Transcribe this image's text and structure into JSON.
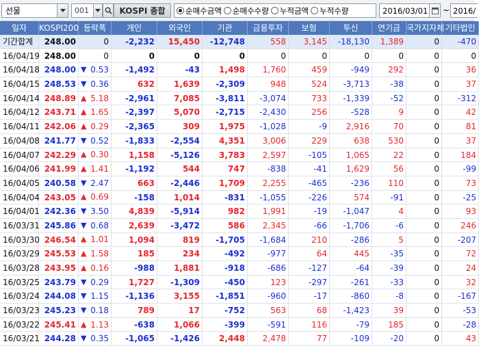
{
  "toolbar": {
    "market": "선물",
    "code": "001",
    "name": "KOSPI 종합",
    "radios": [
      {
        "label": "순매수금액",
        "selected": true
      },
      {
        "label": "순매수수량",
        "selected": false
      },
      {
        "label": "누적금액",
        "selected": false
      },
      {
        "label": "누적수량",
        "selected": false
      }
    ],
    "date_from": "2016/03/01",
    "tilde": "~",
    "date_to": "2016/"
  },
  "columns": [
    "일자",
    "KOSPI200",
    "등락폭",
    "개인",
    "외국인",
    "기관",
    "금융투자",
    "보험",
    "투신",
    "연기금",
    "국가지자체",
    "기타법인"
  ],
  "colors": {
    "header_bg": "#4f78bd",
    "up": "#e4262c",
    "down": "#1a2fd0",
    "total_bg": "#dfe9f7"
  },
  "rows": [
    {
      "date": "기간합계",
      "kospi": "248.00",
      "dir": "",
      "chg": "0",
      "ind": "-2,232",
      "frn": "15,450",
      "inst": "-12,748",
      "fin": "558",
      "ins": "3,145",
      "trust": "-18,130",
      "pens": "1,389",
      "gov": "0",
      "etc": "-470"
    },
    {
      "date": "16/04/19",
      "kospi": "248.00",
      "dir": "",
      "chg": "0",
      "ind": "0",
      "frn": "0",
      "inst": "0",
      "fin": "0",
      "ins": "0",
      "trust": "0",
      "pens": "0",
      "gov": "0",
      "etc": "0"
    },
    {
      "date": "16/04/18",
      "kospi": "248.00",
      "dir": "dn",
      "chg": "0.53",
      "ind": "-1,492",
      "frn": "-43",
      "inst": "1,498",
      "fin": "1,760",
      "ins": "459",
      "trust": "-949",
      "pens": "292",
      "gov": "0",
      "etc": "36"
    },
    {
      "date": "16/04/15",
      "kospi": "248.53",
      "dir": "dn",
      "chg": "0.36",
      "ind": "632",
      "frn": "1,639",
      "inst": "-2,309",
      "fin": "948",
      "ins": "524",
      "trust": "-3,713",
      "pens": "-38",
      "gov": "0",
      "etc": "37"
    },
    {
      "date": "16/04/14",
      "kospi": "248.89",
      "dir": "up",
      "chg": "5.18",
      "ind": "-2,961",
      "frn": "7,085",
      "inst": "-3,811",
      "fin": "-3,074",
      "ins": "733",
      "trust": "-1,339",
      "pens": "-52",
      "gov": "0",
      "etc": "-312"
    },
    {
      "date": "16/04/12",
      "kospi": "243.71",
      "dir": "up",
      "chg": "1.65",
      "ind": "-2,397",
      "frn": "5,070",
      "inst": "-2,715",
      "fin": "-2,430",
      "ins": "256",
      "trust": "-528",
      "pens": "9",
      "gov": "0",
      "etc": "42"
    },
    {
      "date": "16/04/11",
      "kospi": "242.06",
      "dir": "up",
      "chg": "0.29",
      "ind": "-2,365",
      "frn": "309",
      "inst": "1,975",
      "fin": "-1,028",
      "ins": "-9",
      "trust": "2,916",
      "pens": "70",
      "gov": "0",
      "etc": "81"
    },
    {
      "date": "16/04/08",
      "kospi": "241.77",
      "dir": "dn",
      "chg": "0.52",
      "ind": "-1,833",
      "frn": "-2,554",
      "inst": "4,351",
      "fin": "3,006",
      "ins": "229",
      "trust": "638",
      "pens": "530",
      "gov": "0",
      "etc": "37"
    },
    {
      "date": "16/04/07",
      "kospi": "242.29",
      "dir": "up",
      "chg": "0.30",
      "ind": "1,158",
      "frn": "-5,126",
      "inst": "3,783",
      "fin": "2,597",
      "ins": "-105",
      "trust": "1,065",
      "pens": "22",
      "gov": "0",
      "etc": "184"
    },
    {
      "date": "16/04/06",
      "kospi": "241.99",
      "dir": "up",
      "chg": "1.41",
      "ind": "-1,192",
      "frn": "544",
      "inst": "747",
      "fin": "-838",
      "ins": "-41",
      "trust": "1,629",
      "pens": "56",
      "gov": "0",
      "etc": "-99"
    },
    {
      "date": "16/04/05",
      "kospi": "240.58",
      "dir": "dn",
      "chg": "2.47",
      "ind": "663",
      "frn": "-2,446",
      "inst": "1,709",
      "fin": "2,255",
      "ins": "-465",
      "trust": "-236",
      "pens": "110",
      "gov": "0",
      "etc": "73"
    },
    {
      "date": "16/04/04",
      "kospi": "243.05",
      "dir": "up",
      "chg": "0.69",
      "ind": "-158",
      "frn": "1,014",
      "inst": "-831",
      "fin": "-1,055",
      "ins": "-226",
      "trust": "574",
      "pens": "-91",
      "gov": "0",
      "etc": "-25"
    },
    {
      "date": "16/04/01",
      "kospi": "242.36",
      "dir": "dn",
      "chg": "3.50",
      "ind": "4,839",
      "frn": "-5,914",
      "inst": "982",
      "fin": "1,991",
      "ins": "-19",
      "trust": "-1,047",
      "pens": "4",
      "gov": "0",
      "etc": "93"
    },
    {
      "date": "16/03/31",
      "kospi": "245.86",
      "dir": "dn",
      "chg": "0.68",
      "ind": "2,639",
      "frn": "-3,472",
      "inst": "586",
      "fin": "2,345",
      "ins": "-66",
      "trust": "-1,706",
      "pens": "-6",
      "gov": "0",
      "etc": "246"
    },
    {
      "date": "16/03/30",
      "kospi": "246.54",
      "dir": "up",
      "chg": "1.01",
      "ind": "1,094",
      "frn": "819",
      "inst": "-1,705",
      "fin": "-1,684",
      "ins": "210",
      "trust": "-286",
      "pens": "5",
      "gov": "0",
      "etc": "-207"
    },
    {
      "date": "16/03/29",
      "kospi": "245.53",
      "dir": "up",
      "chg": "1.58",
      "ind": "185",
      "frn": "234",
      "inst": "-492",
      "fin": "-977",
      "ins": "64",
      "trust": "445",
      "pens": "-35",
      "gov": "0",
      "etc": "72"
    },
    {
      "date": "16/03/28",
      "kospi": "243.95",
      "dir": "up",
      "chg": "0.16",
      "ind": "-988",
      "frn": "1,881",
      "inst": "-918",
      "fin": "-686",
      "ins": "-127",
      "trust": "-64",
      "pens": "-39",
      "gov": "0",
      "etc": "24"
    },
    {
      "date": "16/03/25",
      "kospi": "243.79",
      "dir": "dn",
      "chg": "0.29",
      "ind": "1,727",
      "frn": "-1,309",
      "inst": "-450",
      "fin": "123",
      "ins": "-297",
      "trust": "-261",
      "pens": "-33",
      "gov": "0",
      "etc": "32"
    },
    {
      "date": "16/03/24",
      "kospi": "244.08",
      "dir": "dn",
      "chg": "1.15",
      "ind": "-1,136",
      "frn": "3,155",
      "inst": "-1,851",
      "fin": "-960",
      "ins": "-17",
      "trust": "-860",
      "pens": "-8",
      "gov": "0",
      "etc": "-167"
    },
    {
      "date": "16/03/23",
      "kospi": "245.23",
      "dir": "dn",
      "chg": "0.18",
      "ind": "789",
      "frn": "17",
      "inst": "-752",
      "fin": "563",
      "ins": "68",
      "trust": "-1,423",
      "pens": "39",
      "gov": "0",
      "etc": "-53"
    },
    {
      "date": "16/03/22",
      "kospi": "245.41",
      "dir": "up",
      "chg": "1.13",
      "ind": "-638",
      "frn": "1,066",
      "inst": "-399",
      "fin": "-591",
      "ins": "116",
      "trust": "-79",
      "pens": "185",
      "gov": "0",
      "etc": "-28"
    },
    {
      "date": "16/03/21",
      "kospi": "244.28",
      "dir": "dn",
      "chg": "0.35",
      "ind": "-1,065",
      "frn": "-1,426",
      "inst": "2,448",
      "fin": "2,478",
      "ins": "77",
      "trust": "-109",
      "pens": "-20",
      "gov": "0",
      "etc": "43"
    }
  ]
}
